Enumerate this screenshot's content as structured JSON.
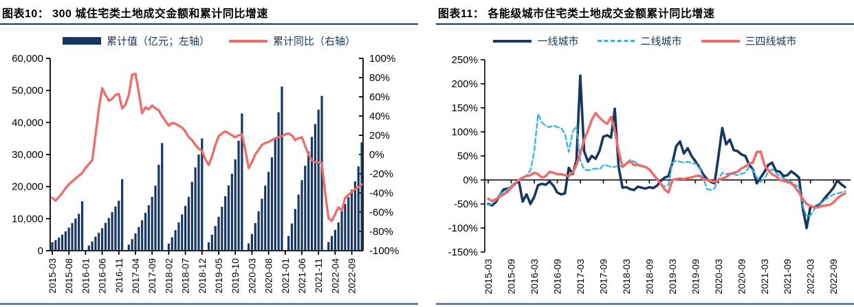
{
  "page": {
    "title_rule_color": "#17365d",
    "footer_rule_color": "#5f82b2",
    "background": "#ffffff"
  },
  "figures": [
    {
      "id": "fig10",
      "title": "图表10： 300 城住宅类土地成交金额和累计同比增速",
      "legend": [
        {
          "label": "累计值（亿元；左轴）",
          "swatch": "bar"
        },
        {
          "label": "累计同比（右轴）",
          "swatch": "line"
        }
      ],
      "chart_data": {
        "type": "bar",
        "subtype": "combo-bar-line-dual-axis",
        "x_start": "2015-03",
        "x_end": "2022-12",
        "x_tick_step": 5,
        "x_tick_labels": [
          "2015-03",
          "2015-08",
          "2016-01",
          "2016-06",
          "2016-11",
          "2017-04",
          "2017-09",
          "2018-02",
          "2018-07",
          "2018-12",
          "2019-05",
          "2019-10",
          "2020-03",
          "2020-08",
          "2021-01",
          "2021-06",
          "2021-11",
          "2022-04",
          "2022-09"
        ],
        "left_axis": {
          "min": 0,
          "max": 60000,
          "tick_labels": [
            "60,000",
            "50,000",
            "40,000",
            "30,000",
            "20,000",
            "10,000",
            "0"
          ]
        },
        "right_axis": {
          "min": -100,
          "max": 100,
          "tick_labels": [
            "100%",
            "80%",
            "60%",
            "40%",
            "20%",
            "0%",
            "-20%",
            "-40%",
            "-60%",
            "-80%",
            "-100%"
          ]
        },
        "grid": false,
        "legend_position": "top",
        "series": [
          {
            "name": "累计值（亿元；左轴）",
            "type": "bar",
            "axis": "left",
            "color": "#17375e",
            "values": [
              2650,
              3300,
              4100,
              5000,
              6050,
              7200,
              8600,
              10050,
              11500,
              15400,
              null,
              1600,
              2900,
              4400,
              5600,
              7000,
              8700,
              10200,
              12000,
              13800,
              15600,
              22300,
              null,
              1900,
              3600,
              5400,
              7400,
              9500,
              11800,
              14200,
              16800,
              20300,
              26800,
              33600,
              null,
              2200,
              4200,
              6400,
              8800,
              11300,
              14000,
              16800,
              21500,
              26000,
              30000,
              35000,
              null,
              2600,
              5000,
              7700,
              10600,
              13700,
              17000,
              20400,
              24000,
              28500,
              34300,
              42800,
              null,
              2300,
              5200,
              8600,
              12300,
              16200,
              20300,
              24600,
              29100,
              35000,
              43200,
              51200,
              null,
              4600,
              8500,
              13000,
              17500,
              22000,
              26500,
              31000,
              35500,
              39500,
              44000,
              48300,
              null,
              2700,
              4600,
              6500,
              8800,
              12300,
              14600,
              16700,
              19000,
              21600,
              26300,
              33800
            ]
          },
          {
            "name": "累计同比（右轴）",
            "type": "line",
            "axis": "right",
            "color": "#ef6c6c",
            "values": [
              -45,
              -48,
              -44,
              -40,
              -35,
              -31,
              -28,
              -25,
              -22,
              -19,
              -14,
              -10,
              -6,
              20,
              48,
              69,
              62,
              56,
              58,
              62,
              63,
              48,
              52,
              62,
              83,
              84,
              65,
              43,
              49,
              47,
              51,
              48,
              46,
              40,
              35,
              30,
              33,
              32,
              30,
              28,
              24,
              18,
              15,
              10,
              6,
              4,
              -5,
              -11,
              -2,
              10,
              19,
              22,
              24,
              22,
              20,
              18,
              20,
              21,
              5,
              -14,
              -8,
              0,
              5,
              10,
              12,
              13,
              15,
              17,
              18,
              19,
              21,
              22,
              20,
              15,
              17,
              18,
              9,
              0,
              -6,
              -8,
              -8,
              -9,
              -40,
              -66,
              -69,
              -62,
              -55,
              -58,
              -45,
              -42,
              -39,
              -36,
              -34,
              -31
            ]
          }
        ]
      }
    },
    {
      "id": "fig11",
      "title": "图表11： 各能级城市住宅类土地成交金额累计同比增速",
      "legend": [
        {
          "label": "一线城市",
          "swatch": "line"
        },
        {
          "label": "二线城市",
          "swatch": "dash"
        },
        {
          "label": "三四线城市",
          "swatch": "line"
        }
      ],
      "chart_data": {
        "type": "line",
        "x_start": "2015-03",
        "x_end": "2022-12",
        "x_tick_step": 6,
        "x_tick_labels": [
          "2015-03",
          "2015-09",
          "2016-03",
          "2016-09",
          "2017-03",
          "2017-09",
          "2018-03",
          "2018-09",
          "2019-03",
          "2019-09",
          "2020-03",
          "2020-09",
          "2021-03",
          "2021-09",
          "2022-03",
          "2022-09"
        ],
        "y_axis": {
          "min": -150,
          "max": 250,
          "tick_labels": [
            "250%",
            "200%",
            "150%",
            "100%",
            "50%",
            "0%",
            "-50%",
            "-100%",
            "-150%"
          ]
        },
        "grid": false,
        "legend_position": "top",
        "series": [
          {
            "name": "一线城市",
            "color": "#17375e",
            "dash": null,
            "values": [
              -50,
              -53,
              -46,
              -32,
              -20,
              -18,
              -16,
              -8,
              -2,
              -45,
              -30,
              -50,
              -35,
              -11,
              -8,
              -10,
              -3,
              -12,
              -26,
              -30,
              -28,
              25,
              12,
              40,
              217,
              60,
              38,
              50,
              44,
              60,
              90,
              93,
              88,
              148,
              27,
              -16,
              -15,
              -19,
              -21,
              -14,
              -16,
              -18,
              -15,
              -17,
              -12,
              -2,
              5,
              8,
              35,
              70,
              80,
              55,
              66,
              50,
              39,
              27,
              12,
              2,
              -4,
              -7,
              48,
              108,
              74,
              84,
              62,
              60,
              53,
              50,
              32,
              22,
              -7,
              5,
              17,
              31,
              36,
              19,
              17,
              8,
              10,
              18,
              12,
              5,
              -60,
              -100,
              -55,
              -57,
              -52,
              -45,
              -35,
              -26,
              -16,
              -1,
              -9,
              -15
            ]
          },
          {
            "name": "二线城市",
            "color": "#35b2e5",
            "dash": [
              7,
              4
            ],
            "values": [
              -52,
              -50,
              -42,
              -30,
              -25,
              -20,
              -12,
              -5,
              0,
              5,
              10,
              20,
              60,
              137,
              120,
              112,
              110,
              113,
              110,
              108,
              96,
              58,
              100,
              112,
              40,
              22,
              20,
              22,
              24,
              22,
              31,
              30,
              27,
              27,
              30,
              28,
              35,
              42,
              38,
              34,
              30,
              26,
              22,
              12,
              4,
              -8,
              -14,
              -10,
              36,
              40,
              38,
              36,
              38,
              35,
              34,
              27,
              5,
              -19,
              -21,
              -18,
              2,
              15,
              12,
              14,
              12,
              10,
              13,
              15,
              27,
              20,
              5,
              -4,
              3,
              17,
              22,
              15,
              8,
              3,
              0,
              -4,
              -10,
              -15,
              -55,
              -76,
              -74,
              -61,
              -50,
              -45,
              -40,
              -35,
              -30,
              -28,
              -26,
              -23
            ]
          },
          {
            "name": "三四线城市",
            "color": "#ef6c6c",
            "dash": null,
            "values": [
              -39,
              -44,
              -40,
              -35,
              -30,
              -25,
              -16,
              -7,
              0,
              5,
              8,
              10,
              15,
              12,
              5,
              8,
              17,
              15,
              12,
              12,
              10,
              8,
              15,
              31,
              55,
              84,
              103,
              125,
              139,
              130,
              122,
              117,
              131,
              103,
              60,
              27,
              34,
              39,
              31,
              31,
              29,
              27,
              22,
              12,
              2,
              -8,
              -20,
              -26,
              0,
              2,
              3,
              2,
              4,
              5,
              8,
              9,
              2,
              0,
              -2,
              -4,
              0,
              3,
              6,
              12,
              15,
              17,
              24,
              28,
              34,
              36,
              58,
              59,
              31,
              20,
              12,
              8,
              0,
              -2,
              -4,
              -7,
              -15,
              -26,
              -40,
              -50,
              -54,
              -57,
              -57,
              -54,
              -53,
              -52,
              -47,
              -38,
              -32,
              -28
            ]
          }
        ]
      }
    }
  ]
}
